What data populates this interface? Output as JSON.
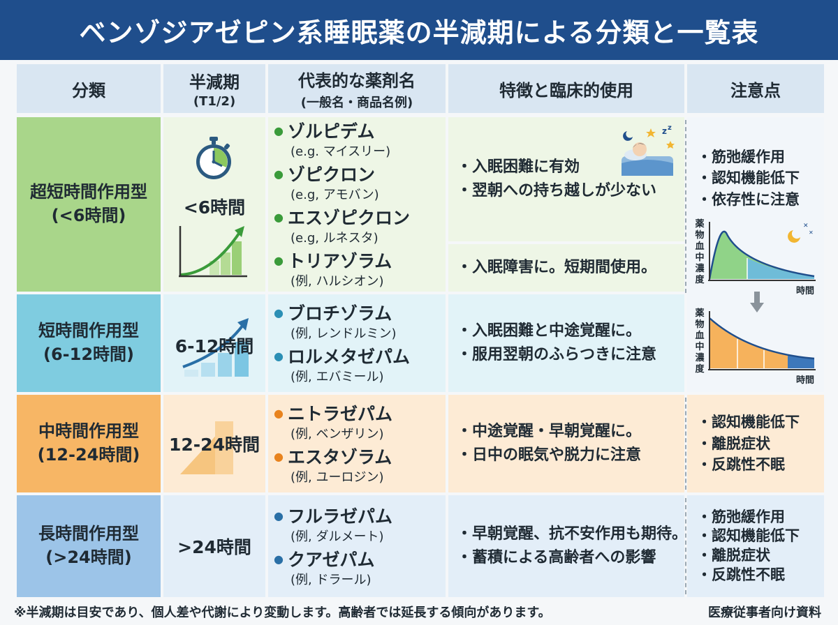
{
  "title": "ベンゾジアゼピン系睡眠薬の半減期による分類と一覧表",
  "headers": {
    "category": "分類",
    "halflife_l1": "半減期",
    "halflife_l2": "(T1/2)",
    "drugs_l1": "代表的な薬剤名",
    "drugs_l2": "(一般名・商品名例)",
    "features": "特徴と臨床的使用",
    "notes": "注意点"
  },
  "rows": [
    {
      "category_l1": "超短時間作用型",
      "category_l2": "(<6時間)",
      "halflife": "<6時間",
      "drugs": [
        {
          "name": "ゾルピデム",
          "example": "(e.g. マイスリー)"
        },
        {
          "name": "ゾピクロン",
          "example": "(e.g, アモバン)"
        },
        {
          "name": "エスゾピクロン",
          "example": "(e.g, ルネスタ)"
        },
        {
          "name": "トリアゾラム",
          "example": "(例, ハルシオン)"
        }
      ],
      "features": [
        "・入眠困難に有効",
        "・翌朝への持ち越しが少ない"
      ],
      "features2": [
        "・入眠障害に。短期間使用。"
      ],
      "notes": [
        "・筋弛緩作用",
        "・認知機能低下",
        "・依存性に注意"
      ]
    },
    {
      "category_l1": "短時間作用型",
      "category_l2": "(6-12時間)",
      "halflife": "6-12時間",
      "drugs": [
        {
          "name": "ブロチゾラム",
          "example": "(例, レンドルミン)"
        },
        {
          "name": "ロルメタゼパム",
          "example": "(例, エバミール)"
        }
      ],
      "features": [
        "・入眠困難と中途覚醒に。",
        "・服用翌朝のふらつきに注意"
      ]
    },
    {
      "category_l1": "中時間作用型",
      "category_l2": "(12-24時間)",
      "halflife": "12-24時間",
      "drugs": [
        {
          "name": "ニトラゼパム",
          "example": "(例, ベンザリン)"
        },
        {
          "name": "エスタゾラム",
          "example": "(例, ユーロジン)"
        }
      ],
      "features": [
        "・中途覚醒・早朝覚醒に。",
        "・日中の眠気や脱力に注意"
      ],
      "notes": [
        "・認知機能低下",
        "・離脱症状",
        "・反跳性不眠"
      ]
    },
    {
      "category_l1": "長時間作用型",
      "category_l2": "(>24時間)",
      "halflife": ">24時間",
      "drugs": [
        {
          "name": "フルラゼパム",
          "example": "(例, ダルメート)"
        },
        {
          "name": "クアゼパム",
          "example": "(例, ドラール)"
        }
      ],
      "features": [
        "・早朝覚醒、抗不安作用も期待。",
        "・蓄積による高齢者への影響"
      ],
      "notes": [
        "・筋弛緩作用",
        "・認知機能低下",
        "・離脱症状",
        "・反跳性不眠"
      ]
    }
  ],
  "graph_labels": {
    "ylabel": [
      "薬",
      "物",
      "血",
      "中",
      "濃",
      "度"
    ],
    "xlabel": "時間"
  },
  "footer_note": "※半減期は目安であり、個人差や代謝により変動します。高齢者では延長する傾向があります。",
  "footer_right": "医療従事者向け資料",
  "colors": {
    "title_bg": "#1f4e8c",
    "header_bg": "#d9e6f2",
    "row1_dark": "#a9d68a",
    "row1_light": "#eef6e6",
    "row2_dark": "#7fcce0",
    "row2_light": "#e2f3f8",
    "row3_dark": "#f7b665",
    "row3_light": "#fdebd5",
    "row4_dark": "#9cc4e8",
    "row4_light": "#e3eef8",
    "dot_green": "#3a9b3a",
    "dot_teal": "#2b8fb5",
    "dot_orange": "#e8831e"
  }
}
